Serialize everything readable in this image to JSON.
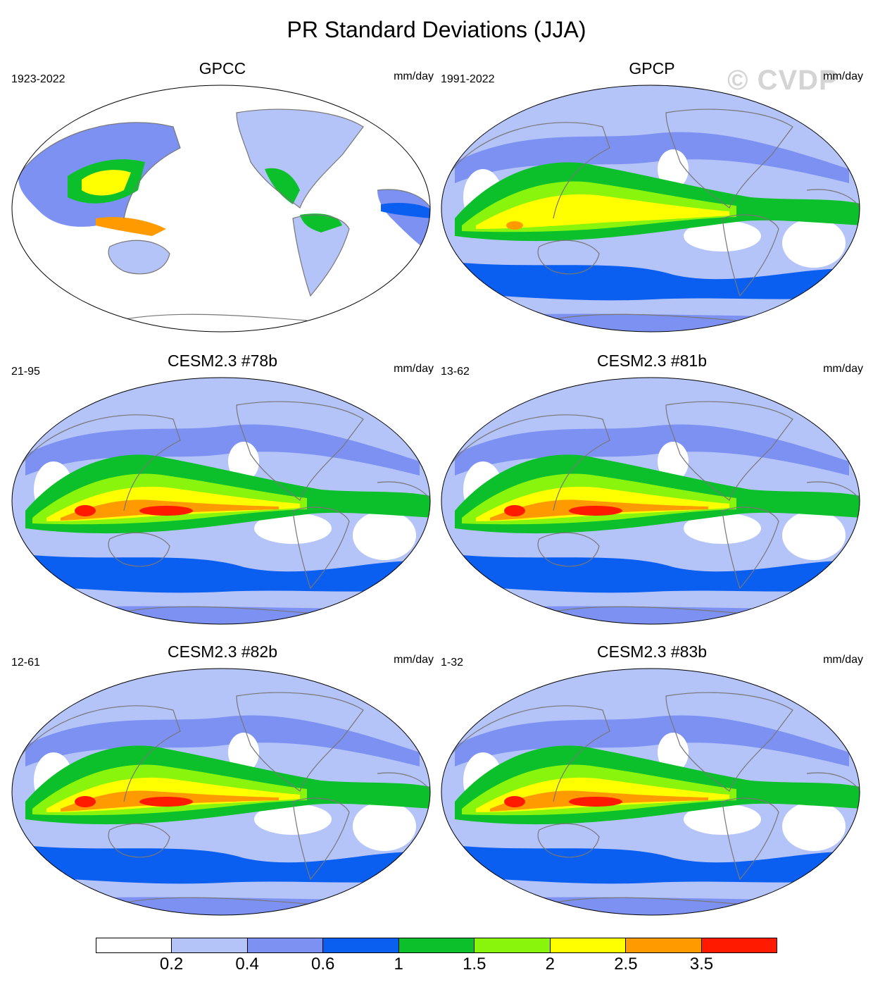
{
  "title": "PR Standard Deviations (JJA)",
  "watermark": "© CVDP",
  "units": "mm/day",
  "panels": [
    {
      "title": "GPCC",
      "years": "1923-2022"
    },
    {
      "title": "GPCP",
      "years": "1991-2022"
    },
    {
      "title": "CESM2.3 #78b",
      "years": "21-95"
    },
    {
      "title": "CESM2.3 #81b",
      "years": "13-62"
    },
    {
      "title": "CESM2.3 #82b",
      "years": "12-61"
    },
    {
      "title": "CESM2.3 #83b",
      "years": "1-32"
    }
  ],
  "colors": [
    "#ffffff",
    "#b4c3f8",
    "#7c91f2",
    "#0a5ff0",
    "#0cc02c",
    "#8af50c",
    "#ffff00",
    "#ff9a00",
    "#ff1a00"
  ],
  "chart_data": {
    "type": "heatmap",
    "title": "PR Standard Deviations (JJA)",
    "units": "mm/day",
    "projection": "Robinson, Pacific-centered",
    "colorbar": {
      "levels": [
        "0.2",
        "0.4",
        "0.6",
        "1",
        "1.5",
        "2",
        "2.5",
        "3.5"
      ],
      "bins": 9
    },
    "maps": [
      {
        "name": "GPCC",
        "period": "1923-2022",
        "land_only": true
      },
      {
        "name": "GPCP",
        "period": "1991-2022"
      },
      {
        "name": "CESM2.3 #78b",
        "period": "21-95"
      },
      {
        "name": "CESM2.3 #81b",
        "period": "13-62"
      },
      {
        "name": "CESM2.3 #82b",
        "period": "12-61"
      },
      {
        "name": "CESM2.3 #83b",
        "period": "1-32"
      }
    ]
  }
}
